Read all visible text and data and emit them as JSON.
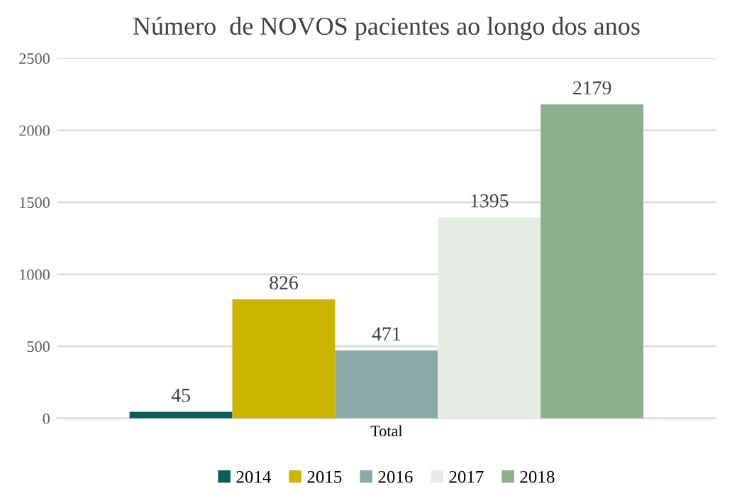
{
  "chart_data": {
    "type": "bar",
    "title": "Número  de NOVOS pacientes ao longo dos anos",
    "categories": [
      "Total"
    ],
    "series": [
      {
        "name": "2014",
        "color": "#0b5e57",
        "values": [
          45
        ]
      },
      {
        "name": "2015",
        "color": "#ccb400",
        "values": [
          826
        ]
      },
      {
        "name": "2016",
        "color": "#8aa9a8",
        "values": [
          471
        ]
      },
      {
        "name": "2017",
        "color": "#e6ede5",
        "values": [
          1395
        ]
      },
      {
        "name": "2018",
        "color": "#8db08c",
        "values": [
          2179
        ]
      }
    ],
    "ylim": [
      0,
      2500
    ],
    "yticks": [
      0,
      500,
      1000,
      1500,
      2000,
      2500
    ],
    "grid": "y",
    "legend": "bottom",
    "data_labels": true
  }
}
